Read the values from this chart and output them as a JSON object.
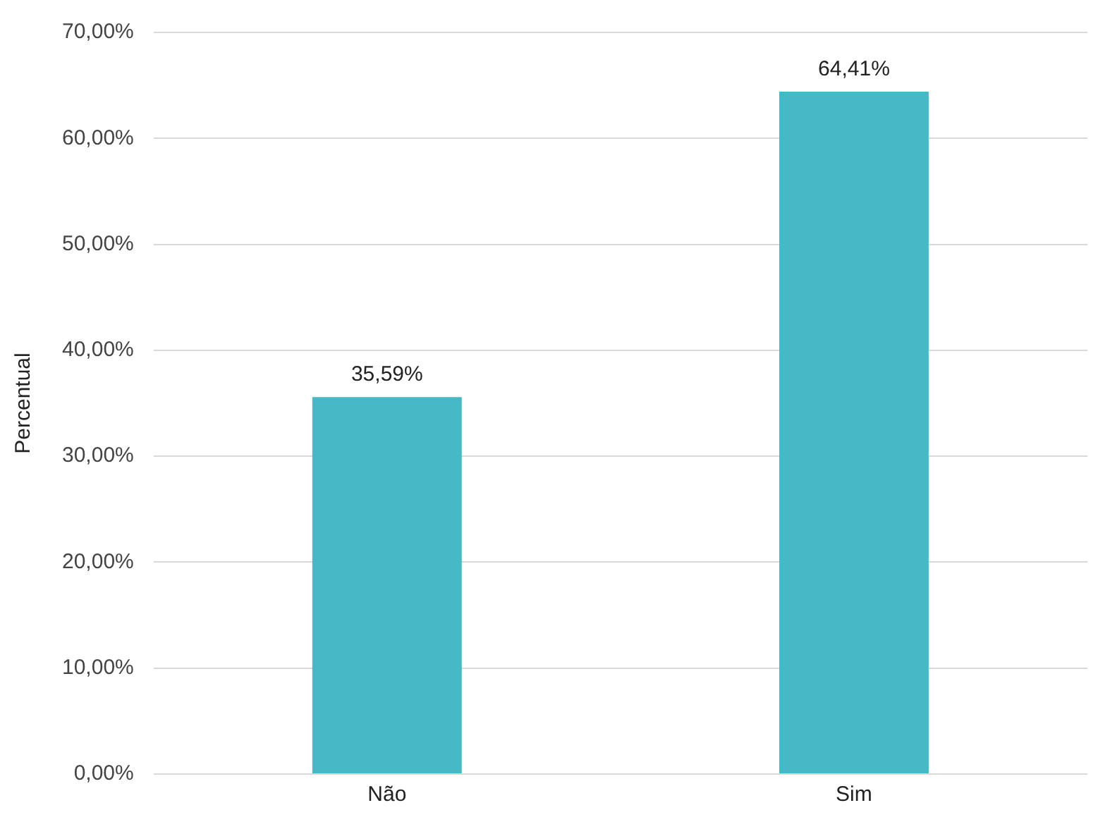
{
  "chart_data": {
    "type": "bar",
    "ylabel": "Percentual",
    "categories": [
      "Não",
      "Sim"
    ],
    "values": [
      35.59,
      64.41
    ],
    "color": "#45bac6",
    "value_labels": [
      "35,59%",
      "64,41%"
    ],
    "ylim": [
      0,
      70
    ],
    "yticks": [
      {
        "value": 0,
        "label": "0,00%"
      },
      {
        "value": 10,
        "label": "10,00%"
      },
      {
        "value": 20,
        "label": "20,00%"
      },
      {
        "value": 30,
        "label": "30,00%"
      },
      {
        "value": 40,
        "label": "40,00%"
      },
      {
        "value": 50,
        "label": "50,00%"
      },
      {
        "value": 60,
        "label": "60,00%"
      },
      {
        "value": 70,
        "label": "70,00%"
      }
    ],
    "grid": "y",
    "legend": false
  }
}
